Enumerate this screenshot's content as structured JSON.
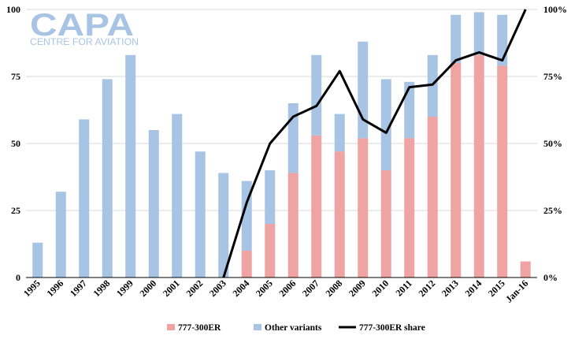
{
  "logo": {
    "main": "CAPA",
    "sub": "CENTRE FOR AVIATION"
  },
  "chart_data": {
    "type": "bar",
    "stacked": true,
    "categories": [
      "1995",
      "1996",
      "1997",
      "1998",
      "1999",
      "2000",
      "2001",
      "2002",
      "2003",
      "2004",
      "2005",
      "2006",
      "2007",
      "2008",
      "2009",
      "2010",
      "2011",
      "2012",
      "2013",
      "2014",
      "2015",
      "Jan-16"
    ],
    "series": [
      {
        "name": "777-300ER",
        "type": "bar",
        "axis": "left",
        "color": "#efa3a3",
        "values": [
          0,
          0,
          0,
          0,
          0,
          0,
          0,
          0,
          0,
          10,
          20,
          39,
          53,
          47,
          52,
          40,
          52,
          60,
          80,
          83,
          79,
          6
        ]
      },
      {
        "name": "Other variants",
        "type": "bar",
        "axis": "left",
        "color": "#a7c4e4",
        "values": [
          13,
          32,
          59,
          74,
          83,
          55,
          61,
          47,
          39,
          26,
          20,
          26,
          30,
          14,
          36,
          34,
          21,
          23,
          18,
          16,
          19,
          0
        ]
      },
      {
        "name": "777-300ER share",
        "type": "line",
        "axis": "right",
        "color": "#000000",
        "values": [
          null,
          null,
          null,
          null,
          null,
          null,
          null,
          null,
          0,
          28,
          50,
          60,
          64,
          77,
          59,
          54,
          71,
          72,
          81,
          84,
          81,
          100
        ]
      }
    ],
    "ylim": [
      0,
      100
    ],
    "yticks": [
      "0",
      "25",
      "50",
      "75",
      "100"
    ],
    "y2lim": [
      0,
      100
    ],
    "y2ticks": [
      "0%",
      "25%",
      "50%",
      "75%",
      "100%"
    ],
    "grid": "horizontal",
    "legend": "bottom",
    "title": "",
    "xlabel": "",
    "ylabel": ""
  }
}
